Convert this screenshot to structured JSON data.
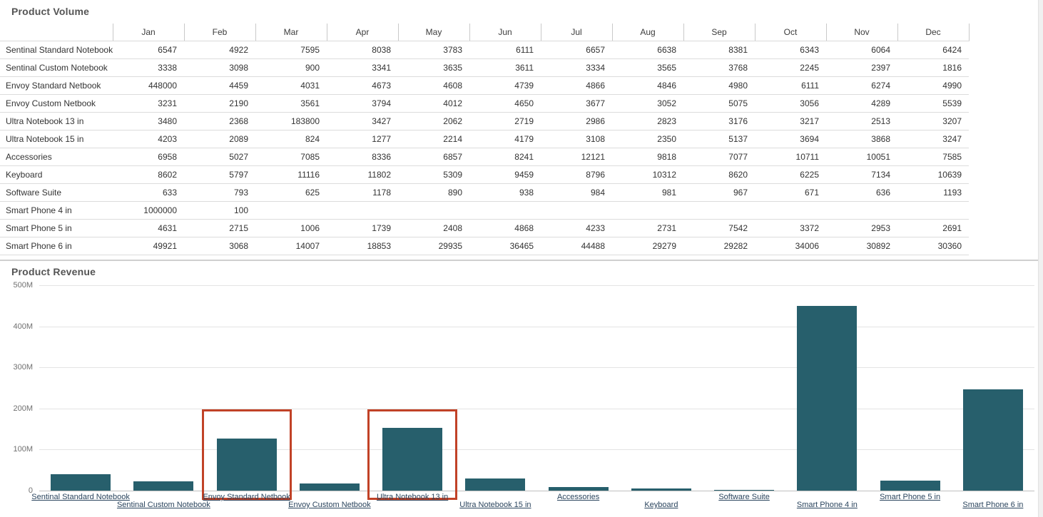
{
  "volume_table": {
    "title": "Product Volume",
    "columns": [
      "Jan",
      "Feb",
      "Mar",
      "Apr",
      "May",
      "Jun",
      "Jul",
      "Aug",
      "Sep",
      "Oct",
      "Nov",
      "Dec"
    ],
    "rows": [
      {
        "label": "Sentinal Standard Notebook",
        "values": [
          "6547",
          "4922",
          "7595",
          "8038",
          "3783",
          "6111",
          "6657",
          "6638",
          "8381",
          "6343",
          "6064",
          "6424"
        ]
      },
      {
        "label": "Sentinal Custom Notebook",
        "values": [
          "3338",
          "3098",
          "900",
          "3341",
          "3635",
          "3611",
          "3334",
          "3565",
          "3768",
          "2245",
          "2397",
          "1816"
        ]
      },
      {
        "label": "Envoy Standard Netbook",
        "values": [
          "448000",
          "4459",
          "4031",
          "4673",
          "4608",
          "4739",
          "4866",
          "4846",
          "4980",
          "6111",
          "6274",
          "4990"
        ]
      },
      {
        "label": "Envoy Custom Netbook",
        "values": [
          "3231",
          "2190",
          "3561",
          "3794",
          "4012",
          "4650",
          "3677",
          "3052",
          "5075",
          "3056",
          "4289",
          "5539"
        ]
      },
      {
        "label": "Ultra Notebook 13 in",
        "values": [
          "3480",
          "2368",
          "183800",
          "3427",
          "2062",
          "2719",
          "2986",
          "2823",
          "3176",
          "3217",
          "2513",
          "3207"
        ]
      },
      {
        "label": "Ultra Notebook 15 in",
        "values": [
          "4203",
          "2089",
          "824",
          "1277",
          "2214",
          "4179",
          "3108",
          "2350",
          "5137",
          "3694",
          "3868",
          "3247"
        ]
      },
      {
        "label": "Accessories",
        "values": [
          "6958",
          "5027",
          "7085",
          "8336",
          "6857",
          "8241",
          "12121",
          "9818",
          "7077",
          "10711",
          "10051",
          "7585"
        ]
      },
      {
        "label": "Keyboard",
        "values": [
          "8602",
          "5797",
          "11116",
          "11802",
          "5309",
          "9459",
          "8796",
          "10312",
          "8620",
          "6225",
          "7134",
          "10639"
        ]
      },
      {
        "label": "Software Suite",
        "values": [
          "633",
          "793",
          "625",
          "1178",
          "890",
          "938",
          "984",
          "981",
          "967",
          "671",
          "636",
          "1193"
        ]
      },
      {
        "label": "Smart Phone 4 in",
        "values": [
          "1000000",
          "100",
          "",
          "",
          "",
          "",
          "",
          "",
          "",
          "",
          "",
          ""
        ]
      },
      {
        "label": "Smart Phone 5 in",
        "values": [
          "4631",
          "2715",
          "1006",
          "1739",
          "2408",
          "4868",
          "4233",
          "2731",
          "7542",
          "3372",
          "2953",
          "2691"
        ]
      },
      {
        "label": "Smart Phone 6 in",
        "values": [
          "49921",
          "3068",
          "14007",
          "18853",
          "29935",
          "36465",
          "44488",
          "29279",
          "29282",
          "34006",
          "30892",
          "30360"
        ]
      }
    ]
  },
  "chart_data": {
    "type": "bar",
    "title": "Product Revenue",
    "categories": [
      "Sentinal Standard Notebook",
      "Sentinal Custom Notebook",
      "Envoy Standard Netbook",
      "Envoy Custom Netbook",
      "Ultra Notebook 13 in",
      "Ultra Notebook 15 in",
      "Accessories",
      "Keyboard",
      "Software Suite",
      "Smart Phone 4 in",
      "Smart Phone 5 in",
      "Smart Phone 6 in"
    ],
    "values_millions": [
      40,
      22,
      127,
      18,
      152,
      30,
      9,
      6,
      2.5,
      450,
      24,
      247
    ],
    "ylim_millions": [
      0,
      500
    ],
    "ytick_values": [
      0,
      100,
      200,
      300,
      400,
      500
    ],
    "ytick_labels": [
      "0",
      "100M",
      "200M",
      "300M",
      "400M",
      "500M"
    ],
    "legend": "none",
    "grid": "horizontal",
    "bar_color": "#275f6c",
    "highlight_color": "#c14227",
    "selected": [
      "Envoy Standard Netbook",
      "Ultra Notebook 13 in"
    ]
  }
}
